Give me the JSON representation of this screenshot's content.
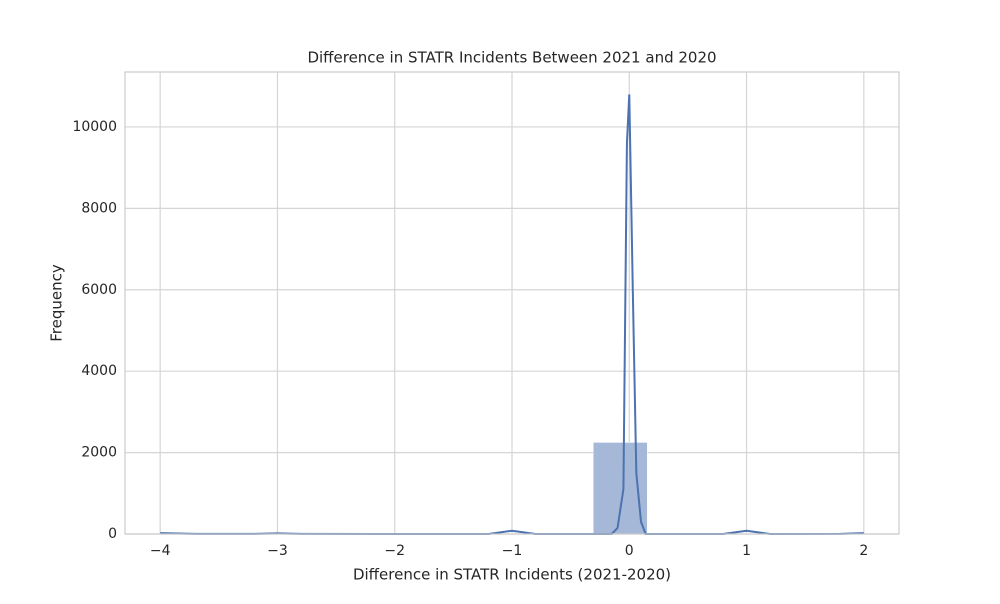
{
  "chart_data": {
    "type": "histogram",
    "title": "Difference in STATR Incidents Between 2021 and 2020",
    "x_label": "Difference in STATR Incidents (2021-2020)",
    "y_label": "Frequency",
    "bins": [
      -4,
      -3.5385,
      -3.0769,
      -2.6154,
      -2.1538,
      -1.6923,
      -1.2308,
      -0.7692,
      -0.3077,
      0.1538,
      0.6154,
      1.0769,
      1.5385,
      2
    ],
    "values": [
      5,
      0,
      3,
      0,
      0,
      0,
      17,
      0,
      2250,
      0,
      17,
      0,
      4
    ],
    "color": "#a5b8d7",
    "kde": {
      "color": "#4c72b0",
      "x": [
        -4,
        -3.9,
        -3.7,
        -3.2,
        -3.0,
        -2.8,
        -2.0,
        -1.2,
        -1.1,
        -1.0,
        -0.9,
        -0.8,
        -0.15,
        -0.1,
        -0.05,
        -0.02,
        0,
        0.03,
        0.06,
        0.1,
        0.14,
        0.8,
        0.9,
        1.0,
        1.1,
        1.2,
        1.8,
        2.0
      ],
      "values": [
        20,
        15,
        3,
        3,
        15,
        3,
        0,
        0,
        40,
        80,
        40,
        0,
        0,
        150,
        1100,
        9600,
        10800,
        6000,
        1500,
        300,
        0,
        0,
        40,
        80,
        40,
        0,
        3,
        20
      ]
    },
    "xlim": [
      -4.3,
      2.3
    ],
    "xticks": [
      {
        "value": -4,
        "label": "−4"
      },
      {
        "value": -3,
        "label": "−3"
      },
      {
        "value": -2,
        "label": "−2"
      },
      {
        "value": -1,
        "label": "−1"
      },
      0,
      1,
      2
    ],
    "ylim": [
      0,
      11350
    ],
    "yticks": [
      0,
      2000,
      4000,
      6000,
      8000,
      10000
    ],
    "grid": true
  }
}
